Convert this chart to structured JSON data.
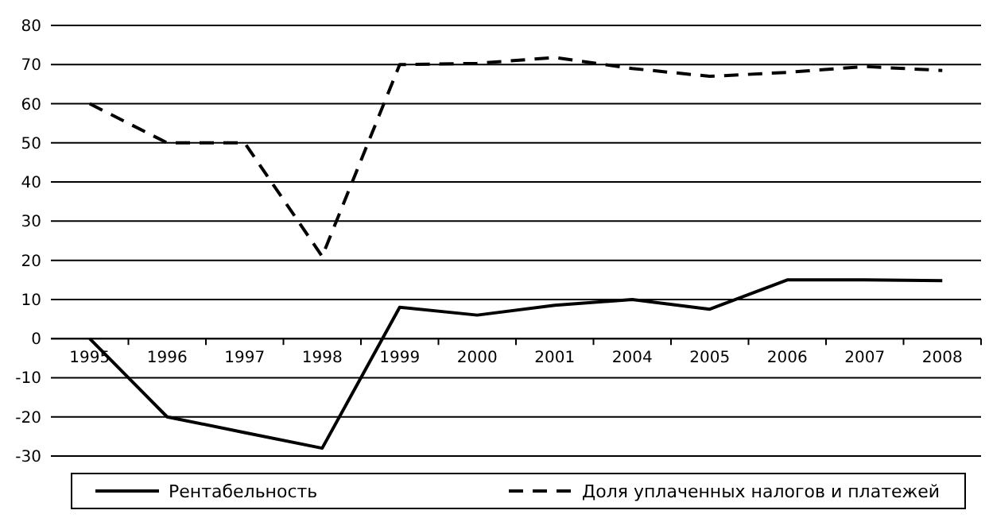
{
  "chart_data": {
    "type": "line",
    "categories": [
      "1995",
      "1996",
      "1997",
      "1998",
      "1999",
      "2000",
      "2001",
      "2004",
      "2005",
      "2006",
      "2007",
      "2008"
    ],
    "series": [
      {
        "name": "Рентабельность",
        "color": "#000000",
        "line_style": "solid",
        "values": [
          0,
          -20,
          -24,
          -28,
          8,
          6,
          8.5,
          10,
          7.5,
          15,
          15,
          14.8
        ]
      },
      {
        "name": "Доля уплаченных налогов и платежей",
        "color": "#000000",
        "line_style": "dashed",
        "values": [
          60,
          50,
          50,
          21,
          70,
          70.3,
          71.8,
          69,
          67,
          68,
          69.5,
          68.5
        ]
      }
    ],
    "ylim": [
      -30,
      80
    ],
    "yticks": [
      -30,
      -20,
      -10,
      0,
      10,
      20,
      30,
      40,
      50,
      60,
      70,
      80
    ],
    "grid": "y",
    "legend": "bottom",
    "marker": "none"
  }
}
